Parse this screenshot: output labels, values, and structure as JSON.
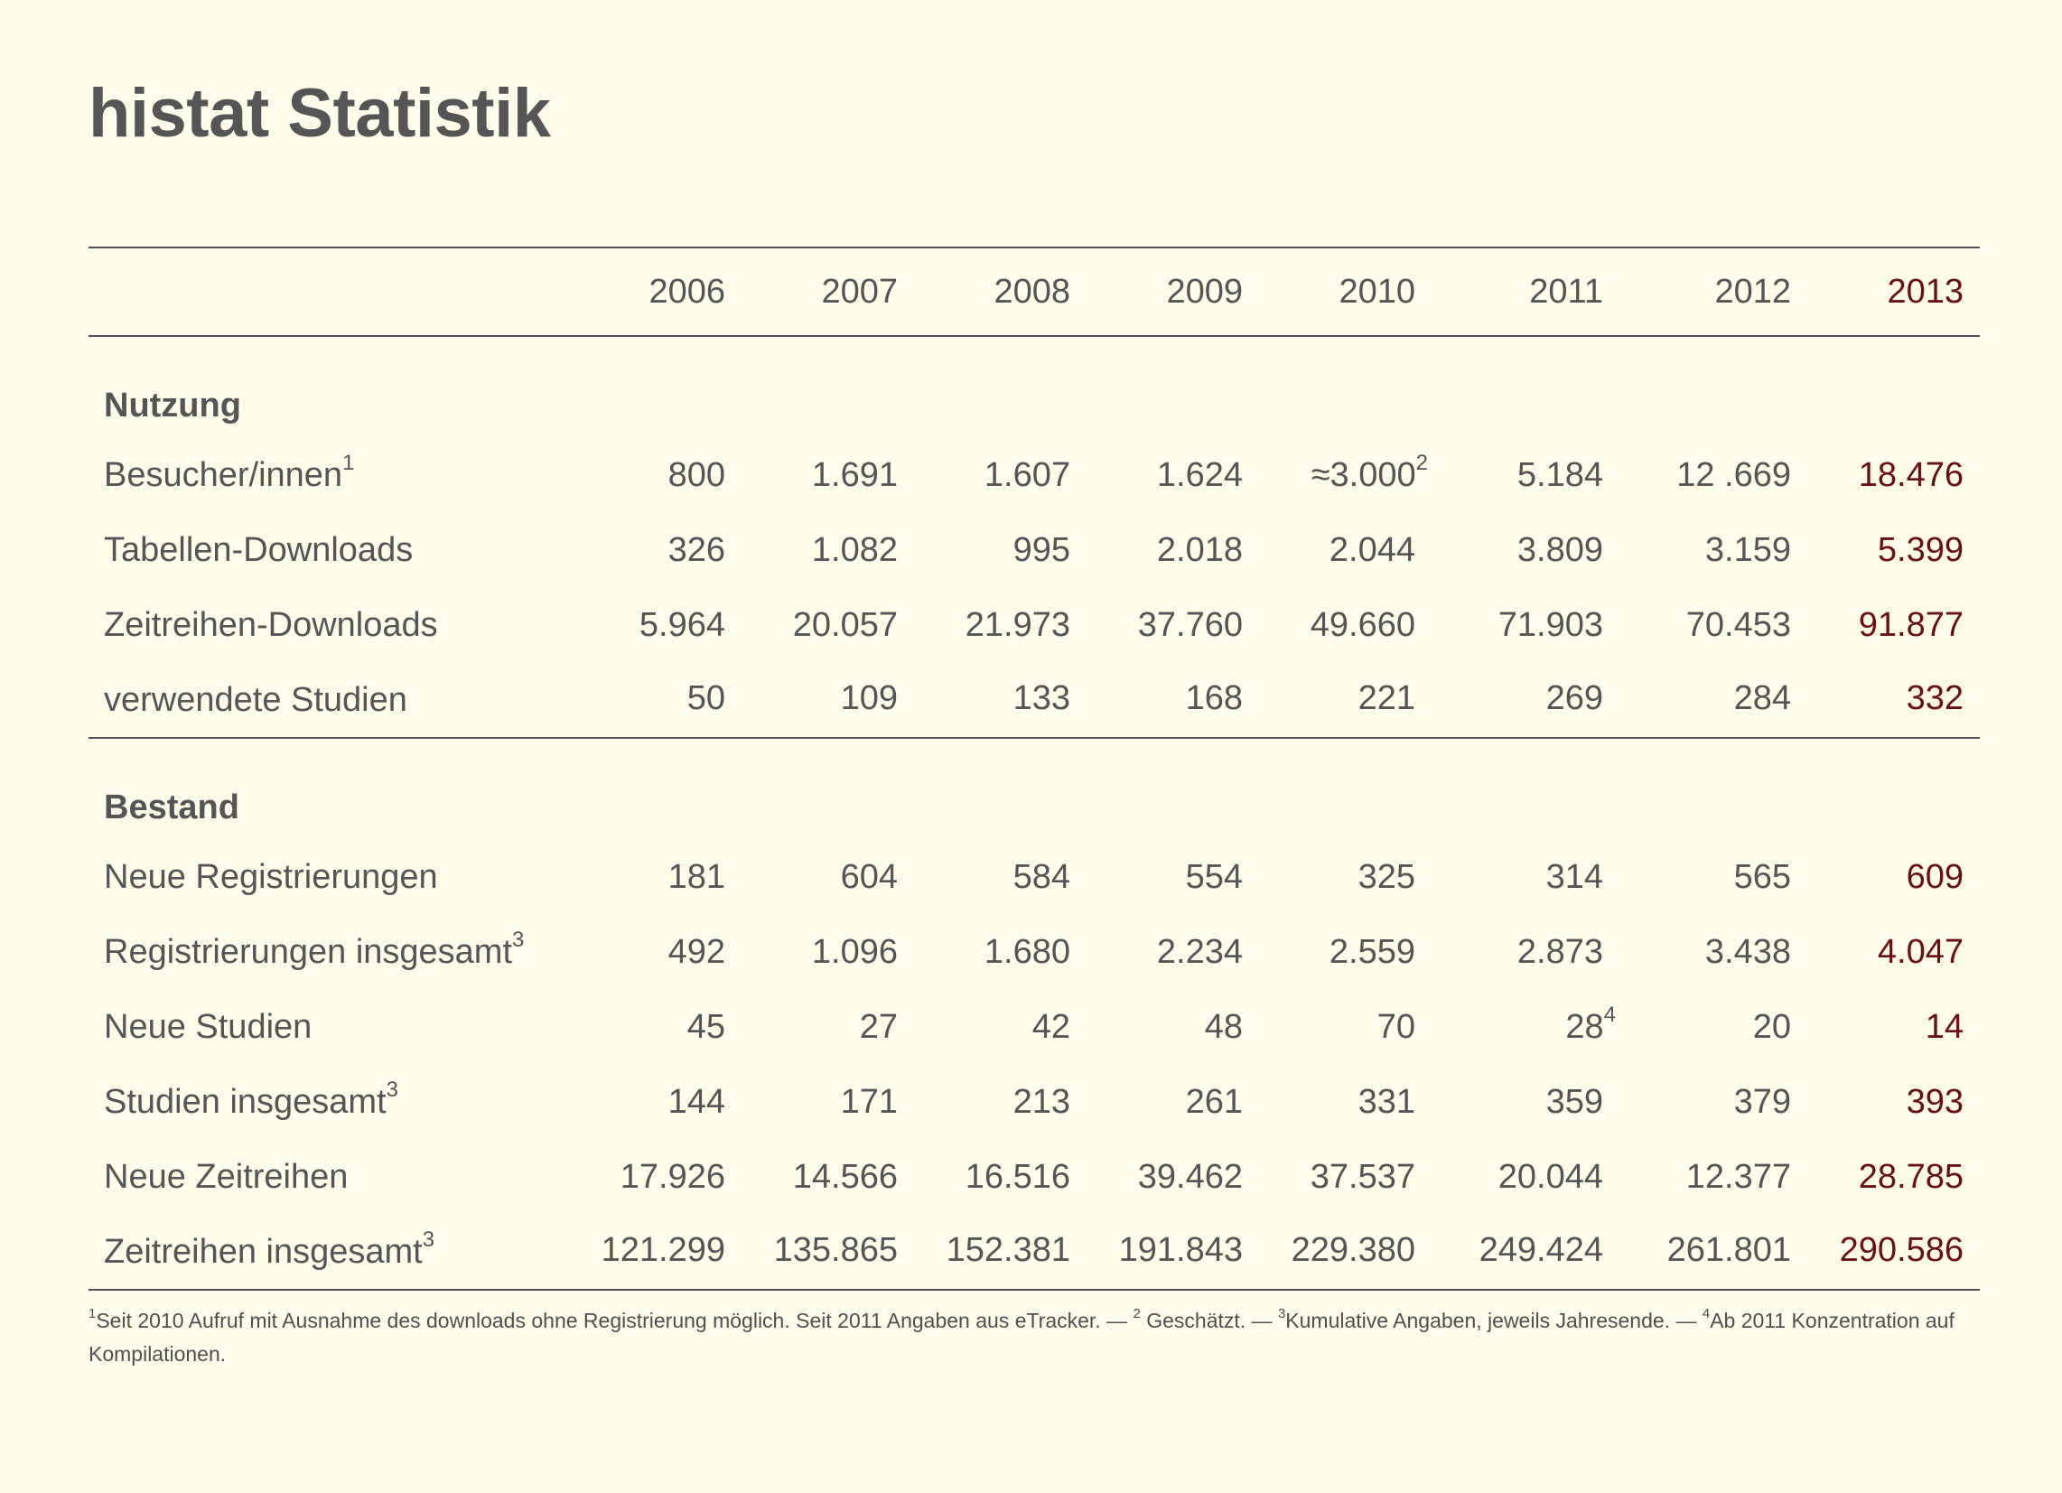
{
  "title": "histat Statistik",
  "header": {
    "years": [
      "2006",
      "2007",
      "2008",
      "2009",
      "2010",
      "2011",
      "2012",
      "2013"
    ]
  },
  "sections": [
    {
      "name": "Nutzung",
      "rows": [
        {
          "label": "Besucher/innen",
          "sup": "1",
          "values": [
            "800",
            "1.691",
            "1.607",
            "1.624",
            "≈3.000",
            "5.184",
            "12 .669",
            "18.476"
          ],
          "value_sups": [
            "",
            "",
            "",
            "",
            "2",
            "",
            "",
            ""
          ]
        },
        {
          "label": "Tabellen-Downloads",
          "sup": "",
          "values": [
            "326",
            "1.082",
            "995",
            "2.018",
            "2.044",
            "3.809",
            "3.159",
            "5.399"
          ],
          "value_sups": [
            "",
            "",
            "",
            "",
            "",
            "",
            "",
            ""
          ]
        },
        {
          "label": "Zeitreihen-Downloads",
          "sup": "",
          "values": [
            "5.964",
            "20.057",
            "21.973",
            "37.760",
            "49.660",
            "71.903",
            "70.453",
            "91.877"
          ],
          "value_sups": [
            "",
            "",
            "",
            "",
            "",
            "",
            "",
            ""
          ]
        },
        {
          "label": "verwendete Studien",
          "sup": "",
          "values": [
            "50",
            "109",
            "133",
            "168",
            "221",
            "269",
            "284",
            "332"
          ],
          "value_sups": [
            "",
            "",
            "",
            "",
            "",
            "",
            "",
            ""
          ]
        }
      ]
    },
    {
      "name": "Bestand",
      "rows": [
        {
          "label": "Neue Registrierungen",
          "sup": "",
          "values": [
            "181",
            "604",
            "584",
            "554",
            "325",
            "314",
            "565",
            "609"
          ],
          "value_sups": [
            "",
            "",
            "",
            "",
            "",
            "",
            "",
            ""
          ]
        },
        {
          "label": "Registrierungen insgesamt",
          "sup": "3",
          "values": [
            "492",
            "1.096",
            "1.680",
            "2.234",
            "2.559",
            "2.873",
            "3.438",
            "4.047"
          ],
          "value_sups": [
            "",
            "",
            "",
            "",
            "",
            "",
            "",
            ""
          ]
        },
        {
          "label": "Neue Studien",
          "sup": "",
          "values": [
            "45",
            "27",
            "42",
            "48",
            "70",
            "28",
            "20",
            "14"
          ],
          "value_sups": [
            "",
            "",
            "",
            "",
            "",
            "4",
            "",
            ""
          ]
        },
        {
          "label": "Studien insgesamt",
          "sup": "3",
          "values": [
            "144",
            "171",
            "213",
            "261",
            "331",
            "359",
            "379",
            "393"
          ],
          "value_sups": [
            "",
            "",
            "",
            "",
            "",
            "",
            "",
            ""
          ]
        },
        {
          "label": "Neue Zeitreihen",
          "sup": "",
          "values": [
            "17.926",
            "14.566",
            "16.516",
            "39.462",
            "37.537",
            "20.044",
            "12.377",
            "28.785"
          ],
          "value_sups": [
            "",
            "",
            "",
            "",
            "",
            "",
            "",
            ""
          ]
        },
        {
          "label": "Zeitreihen insgesamt",
          "sup": "3",
          "values": [
            "121.299",
            "135.865",
            "152.381",
            "191.843",
            "229.380",
            "249.424",
            "261.801",
            "290.586"
          ],
          "value_sups": [
            "",
            "",
            "",
            "",
            "",
            "",
            "",
            ""
          ]
        }
      ]
    }
  ],
  "footnotes": [
    {
      "mark": "1",
      "text": "Seit 2010 Aufruf mit Ausnahme des downloads ohne Registrierung möglich. Seit 2011 Angaben aus eTracker. — "
    },
    {
      "mark": "2",
      "text": " Geschätzt. — "
    },
    {
      "mark": "3",
      "text": "Kumulative Angaben, jeweils Jahresende. — "
    },
    {
      "mark": "4",
      "text": "Ab 2011 Konzentration auf Kompilationen."
    }
  ],
  "colors": {
    "background": "#fefde9",
    "text": "#555555",
    "highlight_year": "#6b0f12"
  }
}
